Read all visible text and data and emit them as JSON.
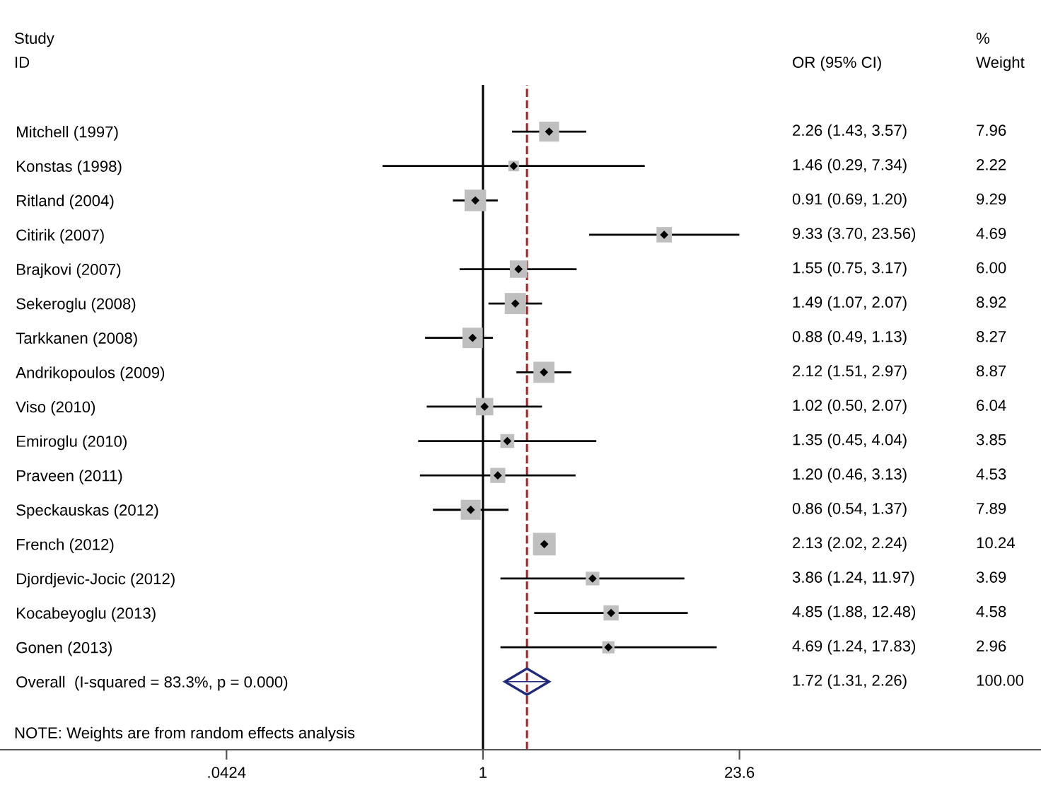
{
  "chart_data": {
    "type": "bubble",
    "orientation": "horizontal",
    "log": "x",
    "grid": false,
    "categories": [
      "Mitchell (1997)",
      "Konstas (1998)",
      "Ritland (2004)",
      "Citirik (2007)",
      "Brajkovi (2007)",
      "Sekeroglu (2008)",
      "Tarkkanen (2008)",
      "Andrikopoulos (2009)",
      "Viso (2010)",
      "Emiroglu (2010)",
      "Praveen (2011)",
      "Speckauskas (2012)",
      "French (2012)",
      "Djordjevic-Jocic (2012)",
      "Kocabeyoglu (2013)",
      "Gonen (2013)",
      "Overall  (I-squared = 83.3%, p = 0.000)"
    ],
    "xlim": [
      0.0026,
      970
    ],
    "xticks": [
      {
        "value": 0.0424,
        "label": ".0424"
      },
      1,
      23.6
    ],
    "series": [
      {
        "marker": "square",
        "color": "#bfbfbf",
        "values": [
          2.26,
          1.46,
          0.91,
          9.33,
          1.55,
          1.49,
          0.88,
          2.12,
          1.02,
          1.35,
          1.2,
          0.86,
          2.13,
          3.86,
          4.85,
          4.69,
          null
        ],
        "errors": [
          [
            1.43,
            3.57
          ],
          [
            0.29,
            7.34
          ],
          [
            0.69,
            1.2
          ],
          [
            3.7,
            23.56
          ],
          [
            0.75,
            3.17
          ],
          [
            1.07,
            2.07
          ],
          [
            0.49,
            1.13
          ],
          [
            1.51,
            2.97
          ],
          [
            0.5,
            2.07
          ],
          [
            0.45,
            4.04
          ],
          [
            0.46,
            3.13
          ],
          [
            0.54,
            1.37
          ],
          [
            2.02,
            2.24
          ],
          [
            1.24,
            11.97
          ],
          [
            1.88,
            12.48
          ],
          [
            1.24,
            17.83
          ],
          null
        ],
        "sizes": [
          0.777,
          0.217,
          0.907,
          0.458,
          0.586,
          0.871,
          0.808,
          0.866,
          0.59,
          0.376,
          0.442,
          0.771,
          1,
          0.36,
          0.447,
          0.289,
          null
        ]
      },
      {
        "type": "scatter",
        "marker": "diamond",
        "color": "#1f2a7a",
        "values": [
          null,
          null,
          null,
          null,
          null,
          null,
          null,
          null,
          null,
          null,
          null,
          null,
          null,
          null,
          null,
          null,
          1.72
        ],
        "errors": [
          null,
          null,
          null,
          null,
          null,
          null,
          null,
          null,
          null,
          null,
          null,
          null,
          null,
          null,
          null,
          null,
          [
            1.31,
            2.26
          ]
        ]
      }
    ],
    "ref_lines": [
      {
        "axis": "x",
        "value": 1,
        "color": "#000000",
        "line_style": "solid"
      },
      {
        "axis": "x",
        "value": 1.72,
        "color": "#a0282d",
        "line_style": "dashed"
      }
    ],
    "annotations": [
      "Study",
      "ID",
      "OR (95% CI)",
      "%",
      "Weight",
      "2.26 (1.43, 3.57)",
      "1.46 (0.29, 7.34)",
      "0.91 (0.69, 1.20)",
      "9.33 (3.70, 23.56)",
      "1.55 (0.75, 3.17)",
      "1.49 (1.07, 2.07)",
      "0.88 (0.49, 1.13)",
      "2.12 (1.51, 2.97)",
      "1.02 (0.50, 2.07)",
      "1.35 (0.45, 4.04)",
      "1.20 (0.46, 3.13)",
      "0.86 (0.54, 1.37)",
      "2.13 (2.02, 2.24)",
      "3.86 (1.24, 11.97)",
      "4.85 (1.88, 12.48)",
      "4.69 (1.24, 17.83)",
      "1.72 (1.31, 2.26)",
      "7.96",
      "2.22",
      "9.29",
      "4.69",
      "6.00",
      "8.92",
      "8.27",
      "8.87",
      "6.04",
      "3.85",
      "4.53",
      "7.89",
      "10.24",
      "3.69",
      "4.58",
      "2.96",
      "100.00",
      "NOTE: Weights are from random effects analysis"
    ]
  }
}
